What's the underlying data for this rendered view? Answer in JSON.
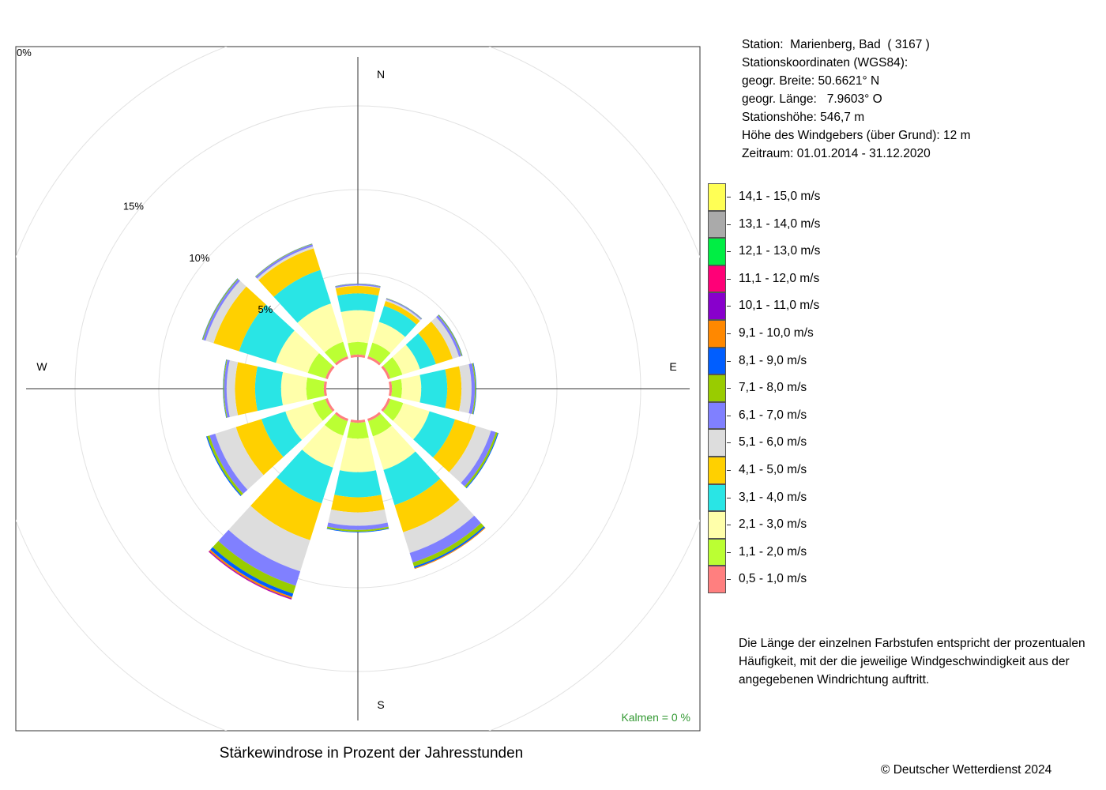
{
  "title": "Stärkewindrose in Prozent der Jahresstunden",
  "station_info": [
    "Station:  Marienberg, Bad  ( 3167 )",
    "Stationskoordinaten (WGS84):",
    "geogr. Breite: 50.6621° N",
    "geogr. Länge:   7.9603° O",
    "Stationshöhe: 546,7 m",
    "Höhe des Windgebers (über Grund): 12 m",
    "Zeitraum: 01.01.2014 - 31.12.2020"
  ],
  "note": "Die Länge der einzelnen Farbstufen entspricht der prozentualen Häufigkeit, mit der die jeweilige Windgeschwindigkeit aus der angegebenen Windrichtung auftritt.",
  "copyright": "© Deutscher Wetterdienst  2024",
  "calm_label": "Kalmen  =  0 %",
  "chart_data": {
    "type": "wind-rose",
    "title": "Stärkewindrose in Prozent der Jahresstunden",
    "direction_labels": [
      "N",
      "E",
      "S",
      "W"
    ],
    "sectors_deg": [
      0,
      30,
      60,
      90,
      120,
      150,
      180,
      210,
      240,
      270,
      300,
      330
    ],
    "radial_ticks": [
      {
        "value": 0,
        "label": "0%"
      },
      {
        "value": 5,
        "label": "5%"
      },
      {
        "value": 10,
        "label": "10%"
      },
      {
        "value": 15,
        "label": "15%"
      }
    ],
    "calm_percent": 0,
    "legend_title": "",
    "classes": [
      {
        "label": "0,5 - 1,0 m/s",
        "color": "#ff7f7f"
      },
      {
        "label": "1,1 - 2,0 m/s",
        "color": "#bbff33"
      },
      {
        "label": "2,1 - 3,0 m/s",
        "color": "#ffffaa"
      },
      {
        "label": "3,1 - 4,0 m/s",
        "color": "#29e5e5"
      },
      {
        "label": "4,1 - 5,0 m/s",
        "color": "#ffd000"
      },
      {
        "label": "5,1 - 6,0 m/s",
        "color": "#dddddd"
      },
      {
        "label": "6,1 - 7,0 m/s",
        "color": "#8080ff"
      },
      {
        "label": "7,1 - 8,0 m/s",
        "color": "#99cc00"
      },
      {
        "label": "8,1 - 9,0 m/s",
        "color": "#005eff"
      },
      {
        "label": "9,1 - 10,0 m/s",
        "color": "#ff8800"
      },
      {
        "label": "10,1 - 11,0 m/s",
        "color": "#8800cc"
      },
      {
        "label": "11,1 - 12,0 m/s",
        "color": "#ff0077"
      },
      {
        "label": "12,1 - 13,0 m/s",
        "color": "#00ee44"
      },
      {
        "label": "13,1 - 14,0 m/s",
        "color": "#aaaaaa"
      },
      {
        "label": "14,1 - 15,0 m/s",
        "color": "#ffff55"
      }
    ],
    "series": [
      {
        "direction": 0,
        "values": [
          0.15,
          0.75,
          1.9,
          1.0,
          0.45,
          0.03,
          0.08,
          0.02,
          0.01,
          0,
          0,
          0,
          0,
          0,
          0
        ]
      },
      {
        "direction": 30,
        "values": [
          0.15,
          0.85,
          1.3,
          1.0,
          0.3,
          0.1,
          0.06,
          0.02,
          0.01,
          0,
          0,
          0,
          0,
          0,
          0
        ]
      },
      {
        "direction": 60,
        "values": [
          0.15,
          0.75,
          1.1,
          1.0,
          1.05,
          0.4,
          0.15,
          0.05,
          0.02,
          0,
          0,
          0,
          0,
          0,
          0
        ]
      },
      {
        "direction": 90,
        "values": [
          0.15,
          0.6,
          1.15,
          1.55,
          0.85,
          0.6,
          0.2,
          0.06,
          0.03,
          0,
          0,
          0,
          0,
          0,
          0
        ]
      },
      {
        "direction": 120,
        "values": [
          0.15,
          0.8,
          1.65,
          1.6,
          1.3,
          0.95,
          0.3,
          0.12,
          0.05,
          0,
          0,
          0,
          0,
          0,
          0
        ]
      },
      {
        "direction": 150,
        "values": [
          0.15,
          0.95,
          2.1,
          2.2,
          1.7,
          1.3,
          0.6,
          0.25,
          0.1,
          0.05,
          0,
          0,
          0,
          0,
          0
        ]
      },
      {
        "direction": 180,
        "values": [
          0.15,
          0.95,
          2.0,
          1.5,
          0.9,
          0.8,
          0.25,
          0.1,
          0.04,
          0,
          0,
          0,
          0,
          0,
          0
        ]
      },
      {
        "direction": 210,
        "values": [
          0.15,
          0.9,
          2.0,
          2.25,
          2.3,
          1.95,
          0.9,
          0.5,
          0.2,
          0.1,
          0.05,
          0.02,
          0,
          0,
          0
        ]
      },
      {
        "direction": 240,
        "values": [
          0.15,
          0.8,
          1.7,
          1.5,
          1.6,
          1.3,
          0.35,
          0.15,
          0.06,
          0,
          0,
          0,
          0,
          0,
          0
        ]
      },
      {
        "direction": 270,
        "values": [
          0.15,
          1.05,
          1.5,
          1.55,
          1.2,
          0.5,
          0.15,
          0.05,
          0.02,
          0,
          0,
          0,
          0,
          0,
          0
        ]
      },
      {
        "direction": 300,
        "values": [
          0.15,
          1.1,
          2.0,
          2.3,
          1.6,
          0.5,
          0.15,
          0.05,
          0.02,
          0,
          0,
          0,
          0,
          0,
          0
        ]
      },
      {
        "direction": 330,
        "values": [
          0.15,
          0.9,
          2.4,
          2.1,
          1.35,
          0.13,
          0.13,
          0.03,
          0.01,
          0,
          0,
          0,
          0,
          0,
          0
        ]
      }
    ]
  }
}
